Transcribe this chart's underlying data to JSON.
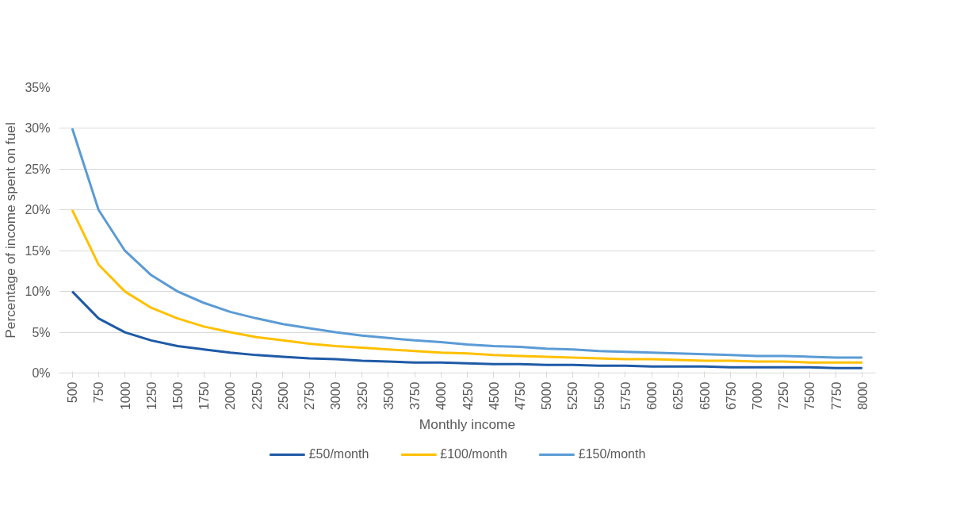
{
  "chart_data": {
    "type": "line",
    "xlabel": "Monthly income",
    "ylabel": "Percentage of income spent on fuel",
    "categories": [
      "500",
      "750",
      "1000",
      "1250",
      "1500",
      "1750",
      "2000",
      "2250",
      "2500",
      "2750",
      "3000",
      "3250",
      "3500",
      "3750",
      "4000",
      "4250",
      "4500",
      "4750",
      "5000",
      "5250",
      "5500",
      "5750",
      "6000",
      "6250",
      "6500",
      "6750",
      "7000",
      "7250",
      "7500",
      "7750",
      "8000"
    ],
    "series": [
      {
        "name": "£50/month",
        "color": "#1f5aa6",
        "values": [
          10,
          6.7,
          5,
          4,
          3.3,
          2.9,
          2.5,
          2.2,
          2,
          1.8,
          1.7,
          1.5,
          1.4,
          1.3,
          1.3,
          1.2,
          1.1,
          1.1,
          1,
          1.0,
          0.9,
          0.9,
          0.8,
          0.8,
          0.8,
          0.7,
          0.7,
          0.7,
          0.7,
          0.6,
          0.6
        ]
      },
      {
        "name": "£100/month",
        "color": "#ffc000",
        "values": [
          20,
          13.3,
          10,
          8,
          6.7,
          5.7,
          5,
          4.4,
          4,
          3.6,
          3.3,
          3.1,
          2.9,
          2.7,
          2.5,
          2.4,
          2.2,
          2.1,
          2,
          1.9,
          1.8,
          1.7,
          1.7,
          1.6,
          1.5,
          1.5,
          1.4,
          1.4,
          1.3,
          1.3,
          1.3
        ]
      },
      {
        "name": "£150/month",
        "color": "#5b9bd5",
        "values": [
          30,
          20,
          15,
          12,
          10,
          8.6,
          7.5,
          6.7,
          6,
          5.5,
          5,
          4.6,
          4.3,
          4,
          3.8,
          3.5,
          3.3,
          3.2,
          3,
          2.9,
          2.7,
          2.6,
          2.5,
          2.4,
          2.3,
          2.2,
          2.1,
          2.1,
          2,
          1.9,
          1.9
        ]
      }
    ],
    "ylim": [
      0,
      35
    ],
    "yticks": [
      {
        "value": 0,
        "label": "0%"
      },
      {
        "value": 5,
        "label": "5%"
      },
      {
        "value": 10,
        "label": "10%"
      },
      {
        "value": 15,
        "label": "15%"
      },
      {
        "value": 20,
        "label": "20%"
      },
      {
        "value": 25,
        "label": "25%"
      },
      {
        "value": 30,
        "label": "30%"
      },
      {
        "value": 35,
        "label": "35%"
      }
    ],
    "grid": "y",
    "legend": "bottom",
    "marker": "none",
    "line_style": "solid"
  }
}
